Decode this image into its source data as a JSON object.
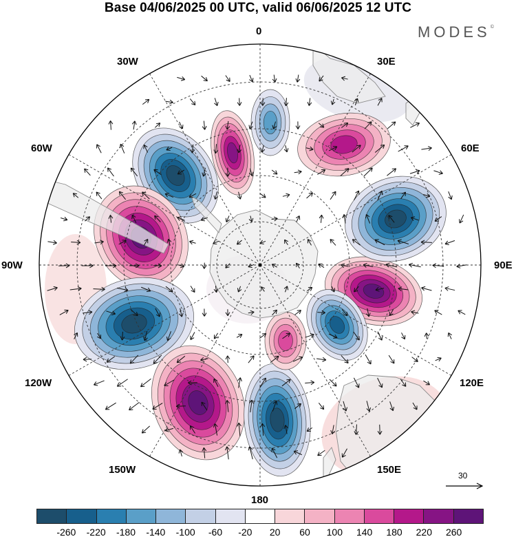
{
  "title": "Base 04/06/2025 00 UTC, valid 06/06/2025 12 UTC",
  "brand": "MODES",
  "brand_mark": "©",
  "map": {
    "projection": "south-polar-stereographic",
    "longitude_labels": {
      "top": "0",
      "top_right": "30E",
      "right_upper": "60E",
      "right": "90E",
      "right_lower": "120E",
      "bottom_right": "150E",
      "bottom": "180",
      "bottom_left": "150W",
      "left_lower": "120W",
      "left": "90W",
      "left_upper": "60W",
      "top_left": "30W"
    },
    "reference_vector": "30",
    "colors": {
      "land": "#ececec",
      "coast": "#8a8a8a",
      "grid": "#333333"
    },
    "anomaly_centers": [
      {
        "kind": "negative",
        "level": -260
      },
      {
        "kind": "positive",
        "level": 260
      },
      {
        "kind": "negative",
        "level": -260
      },
      {
        "kind": "positive",
        "level": 220
      },
      {
        "kind": "negative",
        "level": -260
      },
      {
        "kind": "positive",
        "level": 220
      },
      {
        "kind": "negative",
        "level": -180
      },
      {
        "kind": "positive",
        "level": 100
      },
      {
        "kind": "negative",
        "level": -220
      },
      {
        "kind": "positive",
        "level": 180
      },
      {
        "kind": "negative",
        "level": -100
      },
      {
        "kind": "positive",
        "level": 140
      }
    ]
  },
  "colorbar": {
    "colors": [
      "#1d4d6b",
      "#175f8c",
      "#2a7fb0",
      "#5a9fc8",
      "#8fb6d9",
      "#c3d0e6",
      "#e2e4f1",
      "#ffffff",
      "#f8d6da",
      "#f4b2c5",
      "#ec84b2",
      "#da4a9d",
      "#b4188a",
      "#861484",
      "#5e1478"
    ],
    "tick_labels": [
      "-260",
      "-220",
      "-180",
      "-140",
      "-100",
      "-60",
      "-20",
      "20",
      "60",
      "100",
      "140",
      "180",
      "220",
      "260"
    ]
  }
}
